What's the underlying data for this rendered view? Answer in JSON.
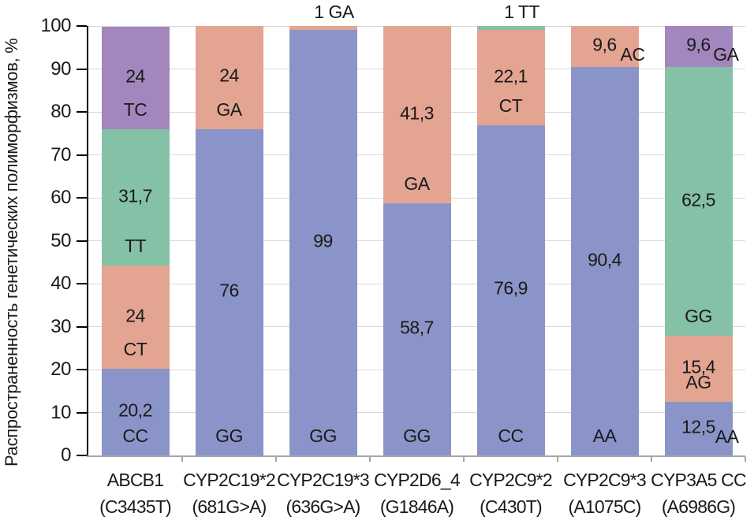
{
  "chart_data": {
    "type": "bar",
    "stacked": true,
    "title": "",
    "xlabel": "",
    "ylabel": "Распространенность генетических полиморфизмов, %",
    "ylim": [
      0,
      100
    ],
    "yticks": [
      0,
      10,
      20,
      30,
      40,
      50,
      60,
      70,
      80,
      90,
      100
    ],
    "grid": true,
    "legend": "none",
    "decimal_separator": ",",
    "series_colors": {
      "blue": "#8B94C8",
      "salmon": "#E3A492",
      "green": "#85C1A6",
      "purple": "#A287BE"
    },
    "categories": [
      {
        "label_line1": "ABCB1",
        "label_line2": "(C3435T)",
        "segments": [
          {
            "genotype": "CC",
            "value": 20.2,
            "label": "20,2",
            "color": "blue",
            "label_mode": "stack"
          },
          {
            "genotype": "CT",
            "value": 24,
            "label": "24",
            "color": "salmon",
            "label_mode": "stack"
          },
          {
            "genotype": "TT",
            "value": 31.7,
            "label": "31,7",
            "color": "green",
            "label_mode": "stack"
          },
          {
            "genotype": "TC",
            "value": 24,
            "label": "24",
            "color": "purple",
            "label_mode": "stack"
          }
        ]
      },
      {
        "label_line1": "CYP2C19*2",
        "label_line2": "(681G>A)",
        "segments": [
          {
            "genotype": "GG",
            "value": 76,
            "label": "76",
            "color": "blue",
            "label_mode": "stack"
          },
          {
            "genotype": "GA",
            "value": 24,
            "label": "24",
            "color": "salmon",
            "label_mode": "stack"
          }
        ]
      },
      {
        "label_line1": "CYP2C19*3",
        "label_line2": "(636G>A)",
        "segments": [
          {
            "genotype": "GG",
            "value": 99,
            "label": "99",
            "color": "blue",
            "label_mode": "stack"
          },
          {
            "genotype": "GA",
            "value": 1,
            "label": "1",
            "color": "salmon",
            "label_mode": "above"
          }
        ]
      },
      {
        "label_line1": "CYP2D6_4",
        "label_line2": "(G1846A)",
        "segments": [
          {
            "genotype": "GG",
            "value": 58.7,
            "label": "58,7",
            "color": "blue",
            "label_mode": "stack"
          },
          {
            "genotype": "GA",
            "value": 41.3,
            "label": "41,3",
            "color": "salmon",
            "label_mode": "stack"
          }
        ]
      },
      {
        "label_line1": "CYP2C9*2",
        "label_line2": "(C430T)",
        "segments": [
          {
            "genotype": "CC",
            "value": 76.9,
            "label": "76,9",
            "color": "blue",
            "label_mode": "stack"
          },
          {
            "genotype": "CT",
            "value": 22.1,
            "label": "22,1",
            "color": "salmon",
            "label_mode": "stack"
          },
          {
            "genotype": "TT",
            "value": 1,
            "label": "1",
            "color": "green",
            "label_mode": "above"
          }
        ]
      },
      {
        "label_line1": "CYP2C9*3",
        "label_line2": "(A1075C)",
        "segments": [
          {
            "genotype": "AA",
            "value": 90.4,
            "label": "90,4",
            "color": "blue",
            "label_mode": "stack"
          },
          {
            "genotype": "AC",
            "value": 9.6,
            "label": "9,6",
            "color": "salmon",
            "label_mode": "inline"
          }
        ]
      },
      {
        "label_line1": "CYP3A5 CC",
        "label_line2": "(A6986G)",
        "segments": [
          {
            "genotype": "AA",
            "value": 12.5,
            "label": "12,5",
            "color": "blue",
            "label_mode": "inline"
          },
          {
            "genotype": "AG",
            "value": 15.4,
            "label": "15,4",
            "color": "salmon",
            "label_mode": "stack"
          },
          {
            "genotype": "GG",
            "value": 62.5,
            "label": "62,5",
            "color": "green",
            "label_mode": "stack"
          },
          {
            "genotype": "GA",
            "value": 9.6,
            "label": "9,6",
            "color": "purple",
            "label_mode": "inline"
          }
        ]
      }
    ]
  }
}
